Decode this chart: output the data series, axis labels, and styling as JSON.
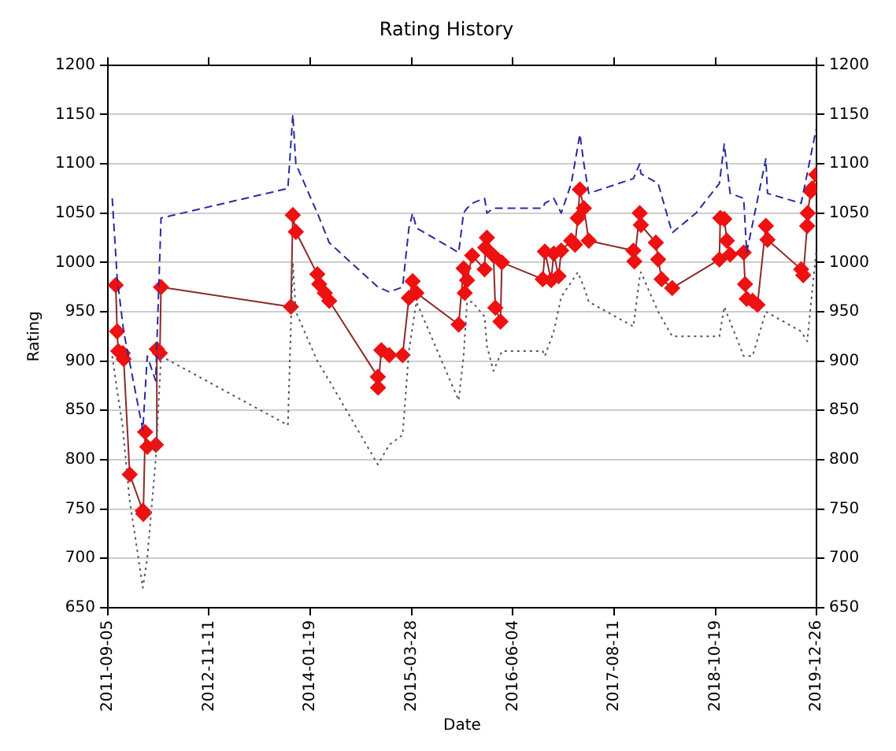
{
  "chart_data": {
    "type": "line",
    "title": "Rating History",
    "xlabel": "Date",
    "ylabel": "Rating",
    "xlim": [
      "2011-09-05",
      "2019-12-26"
    ],
    "xticks": [
      "2011-09-05",
      "2012-11-11",
      "2014-01-19",
      "2015-03-28",
      "2016-06-04",
      "2017-08-11",
      "2018-10-19",
      "2019-12-26"
    ],
    "ylim": [
      650,
      1200
    ],
    "yticks": [
      650,
      700,
      750,
      800,
      850,
      900,
      950,
      1000,
      1050,
      1100,
      1150,
      1200
    ],
    "y2lim": [
      650,
      1200
    ],
    "y2ticks": [
      650,
      700,
      750,
      800,
      850,
      900,
      950,
      1000,
      1050,
      1100,
      1150,
      1200
    ],
    "grid": "y",
    "legend": false,
    "series": [
      {
        "color": "#2a2aa0",
        "line_style": "dashed",
        "marker": "none",
        "x": [
          "2011-09-24",
          "2011-10-15",
          "2011-11-12",
          "2012-02-02",
          "2012-02-21",
          "2012-03-28",
          "2012-04-20",
          "2013-10-15",
          "2013-11-05",
          "2013-11-18",
          "2014-02-18",
          "2014-04-10",
          "2014-11-04",
          "2014-12-23",
          "2015-02-18",
          "2015-03-17",
          "2015-04-02",
          "2015-04-18",
          "2015-10-16",
          "2015-11-06",
          "2015-11-21",
          "2015-12-13",
          "2016-02-04",
          "2016-02-14",
          "2016-03-13",
          "2016-04-18",
          "2016-10-10",
          "2016-10-19",
          "2016-11-26",
          "2016-12-28",
          "2017-02-09",
          "2017-03-18",
          "2017-04-04",
          "2017-04-25",
          "2017-11-02",
          "2017-11-29",
          "2017-12-04",
          "2018-02-16",
          "2018-04-17",
          "2018-07-28",
          "2018-11-05",
          "2018-11-26",
          "2018-12-21",
          "2019-02-17",
          "2019-03-02",
          "2019-05-23",
          "2019-05-30",
          "2019-10-21",
          "2019-11-16",
          "2019-12-24"
        ],
        "values": [
          1065,
          985,
          930,
          830,
          905,
          880,
          1045,
          1075,
          1150,
          1100,
          1050,
          1020,
          975,
          970,
          975,
          1035,
          1050,
          1035,
          1010,
          1050,
          1055,
          1060,
          1065,
          1050,
          1055,
          1055,
          1055,
          1060,
          1065,
          1050,
          1080,
          1130,
          1100,
          1070,
          1085,
          1100,
          1090,
          1080,
          1030,
          1050,
          1080,
          1120,
          1070,
          1065,
          1010,
          1105,
          1070,
          1060,
          1090,
          1135
        ]
      },
      {
        "color": "#555566",
        "line_style": "dotted",
        "marker": "none",
        "x": [
          "2011-09-24",
          "2011-10-15",
          "2011-11-07",
          "2011-12-07",
          "2012-02-02",
          "2012-02-21",
          "2012-03-28",
          "2012-04-20",
          "2013-10-15",
          "2013-11-05",
          "2013-11-18",
          "2014-02-18",
          "2014-04-10",
          "2014-11-04",
          "2014-12-23",
          "2015-02-18",
          "2015-03-17",
          "2015-04-18",
          "2015-10-16",
          "2015-11-06",
          "2015-11-21",
          "2015-12-13",
          "2016-02-04",
          "2016-02-14",
          "2016-03-13",
          "2016-04-18",
          "2016-10-10",
          "2016-10-19",
          "2016-11-26",
          "2016-12-28",
          "2017-03-09",
          "2017-04-04",
          "2017-04-25",
          "2017-11-02",
          "2017-11-29",
          "2017-12-04",
          "2018-02-16",
          "2018-04-17",
          "2018-11-05",
          "2018-11-26",
          "2019-02-17",
          "2019-03-27",
          "2019-05-23",
          "2019-10-21",
          "2019-11-16",
          "2019-12-24"
        ],
        "values": [
          905,
          870,
          835,
          760,
          670,
          700,
          800,
          905,
          835,
          1000,
          950,
          900,
          880,
          795,
          815,
          825,
          910,
          960,
          860,
          905,
          960,
          960,
          945,
          915,
          890,
          910,
          910,
          905,
          930,
          965,
          990,
          975,
          960,
          935,
          985,
          990,
          950,
          925,
          925,
          955,
          905,
          905,
          950,
          930,
          920,
          1010
        ]
      },
      {
        "color": "#ee1111",
        "line_style": "solid",
        "marker": "diamond",
        "x": [
          "2011-10-09",
          "2011-10-15",
          "2011-10-20",
          "2011-11-08",
          "2011-11-12",
          "2011-12-08",
          "2012-02-02",
          "2012-02-04",
          "2012-02-12",
          "2012-02-21",
          "2012-03-29",
          "2012-04-02",
          "2012-04-15",
          "2012-04-20",
          "2013-10-28",
          "2013-11-05",
          "2013-11-18",
          "2014-02-18",
          "2014-02-26",
          "2014-03-22",
          "2014-04-10",
          "2014-11-04",
          "2014-11-05",
          "2014-11-19",
          "2014-12-23",
          "2015-02-18",
          "2015-03-17",
          "2015-04-02",
          "2015-04-18",
          "2015-10-16",
          "2015-11-06",
          "2015-11-11",
          "2015-11-21",
          "2015-12-13",
          "2016-02-04",
          "2016-02-07",
          "2016-02-14",
          "2016-03-13",
          "2016-03-21",
          "2016-04-12",
          "2016-04-18",
          "2016-10-10",
          "2016-10-19",
          "2016-11-15",
          "2016-11-26",
          "2016-12-17",
          "2016-12-28",
          "2017-02-09",
          "2017-02-25",
          "2017-03-09",
          "2017-03-18",
          "2017-04-04",
          "2017-04-25",
          "2017-11-02",
          "2017-11-06",
          "2017-11-29",
          "2017-12-04",
          "2018-02-06",
          "2018-02-16",
          "2018-03-03",
          "2018-04-17",
          "2018-11-05",
          "2018-11-09",
          "2018-11-26",
          "2018-12-07",
          "2018-12-21",
          "2019-02-17",
          "2019-02-23",
          "2019-03-02",
          "2019-03-27",
          "2019-04-17",
          "2019-05-23",
          "2019-05-30",
          "2019-10-21",
          "2019-10-30",
          "2019-11-16",
          "2019-11-18",
          "2019-12-01",
          "2019-12-07",
          "2019-12-24"
        ],
        "values": [
          977,
          930,
          910,
          908,
          902,
          785,
          748,
          745,
          828,
          813,
          815,
          912,
          908,
          975,
          955,
          1048,
          1031,
          988,
          978,
          969,
          961,
          884,
          873,
          911,
          906,
          906,
          964,
          981,
          969,
          937,
          994,
          969,
          982,
          1007,
          993,
          1015,
          1025,
          1007,
          954,
          940,
          1000,
          983,
          1011,
          982,
          1009,
          986,
          1012,
          1022,
          1018,
          1045,
          1074,
          1055,
          1022,
          1012,
          1001,
          1050,
          1038,
          1020,
          1003,
          983,
          974,
          1003,
          1045,
          1044,
          1022,
          1008,
          1010,
          978,
          963,
          961,
          957,
          1037,
          1023,
          993,
          987,
          1037,
          1050,
          1072,
          1075,
          1089
        ]
      }
    ]
  }
}
